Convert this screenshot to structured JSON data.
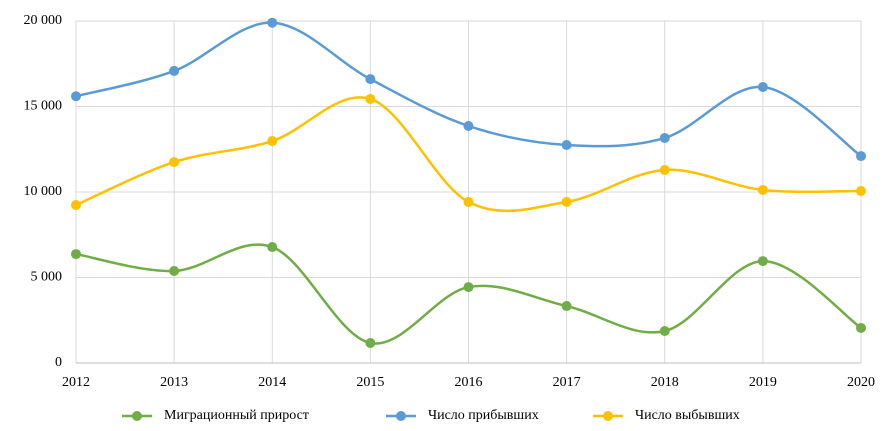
{
  "chart_data": {
    "type": "line",
    "legend": "bottom",
    "grid": true,
    "smooth": true,
    "x": [
      2012,
      2013,
      2014,
      2015,
      2016,
      2017,
      2018,
      2019,
      2020
    ],
    "xlim": [
      2012,
      2020
    ],
    "xticks": [
      2012,
      2013,
      2014,
      2015,
      2016,
      2017,
      2018,
      2019,
      2020
    ],
    "ylim": [
      0,
      20000
    ],
    "yticks": [
      0,
      {
        "value": 5000,
        "label": "5 000"
      },
      {
        "value": 10000,
        "label": "10 000"
      },
      {
        "value": 15000,
        "label": "15 000"
      },
      {
        "value": 20000,
        "label": "20 000"
      }
    ],
    "series": [
      {
        "name": "Миграционный прирост",
        "color": "#70ad47",
        "values": [
          6370,
          5380,
          6780,
          1170,
          4440,
          3330,
          1870,
          5960,
          2050
        ]
      },
      {
        "name": "Число прибывших",
        "color": "#5b9bd5",
        "values": [
          15600,
          17080,
          19900,
          16600,
          13860,
          12750,
          13160,
          16140,
          12100
        ]
      },
      {
        "name": "Число выбывших",
        "color": "#ffc000",
        "values": [
          9240,
          11750,
          12980,
          15440,
          9420,
          9420,
          11290,
          10120,
          10060
        ]
      }
    ]
  }
}
